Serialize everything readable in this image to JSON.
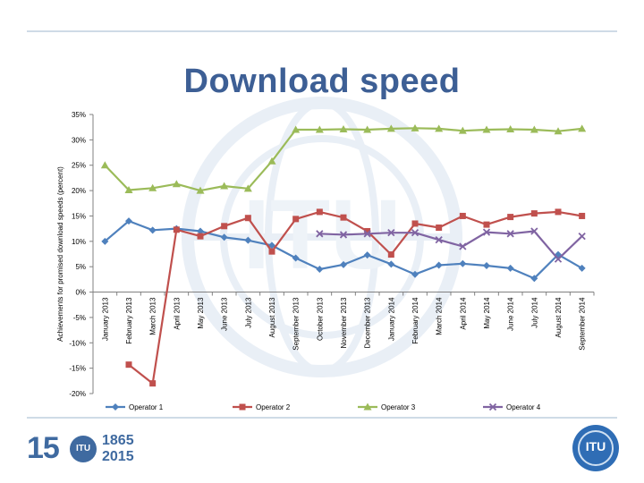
{
  "slide": {
    "title": "Download speed"
  },
  "chart_data": {
    "type": "line",
    "title": "",
    "xlabel": "",
    "ylabel": "Achievements for promised download speeds (percent)",
    "ylim": [
      -20,
      35
    ],
    "yticks": [
      "35%",
      "30%",
      "25%",
      "20%",
      "15%",
      "10%",
      "5%",
      "0%",
      "-5%",
      "-10%",
      "-15%",
      "-20%"
    ],
    "ytick_values": [
      35,
      30,
      25,
      20,
      15,
      10,
      5,
      0,
      -5,
      -10,
      -15,
      -20
    ],
    "grid": false,
    "legend": "bottom",
    "categories": [
      "January 2013",
      "February 2013",
      "March 2013",
      "April 2013",
      "May 2013",
      "June 2013",
      "July 2013",
      "August 2013",
      "September 2013",
      "October 2013",
      "November 2013",
      "December 2013",
      "January 2014",
      "February 2014",
      "March 2014",
      "April 2014",
      "May 2014",
      "June 2014",
      "July 2014",
      "August 2014",
      "September 2014"
    ],
    "series": [
      {
        "name": "Operator 1",
        "color": "#4f81bd",
        "marker": "diamond",
        "values": [
          10,
          14,
          12.2,
          12.5,
          12,
          10.8,
          10.2,
          9.2,
          6.7,
          4.5,
          5.4,
          7.3,
          5.5,
          3.5,
          5.3,
          5.6,
          5.2,
          4.7,
          2.7,
          7.4,
          4.7
        ]
      },
      {
        "name": "Operator 2",
        "color": "#c0504d",
        "marker": "square",
        "values": [
          null,
          -14.3,
          -18,
          12.3,
          11,
          13,
          14.6,
          8,
          14.4,
          15.8,
          14.7,
          12,
          7.4,
          13.5,
          12.7,
          15,
          13.3,
          14.8,
          15.5,
          15.8,
          15
        ]
      },
      {
        "name": "Operator 3",
        "color": "#9bbb59",
        "marker": "triangle",
        "values": [
          25,
          20.1,
          20.5,
          21.3,
          20,
          20.9,
          20.4,
          25.8,
          32,
          32,
          32.1,
          32,
          32.2,
          32.3,
          32.2,
          31.8,
          32,
          32.1,
          32,
          31.7,
          32.2
        ]
      },
      {
        "name": "Operator 4",
        "color": "#8064a2",
        "marker": "x",
        "values": [
          null,
          null,
          null,
          null,
          null,
          null,
          null,
          null,
          null,
          11.5,
          11.3,
          11.5,
          11.7,
          11.7,
          10.3,
          9,
          11.8,
          11.5,
          12,
          6.5,
          11
        ]
      }
    ]
  }
}
